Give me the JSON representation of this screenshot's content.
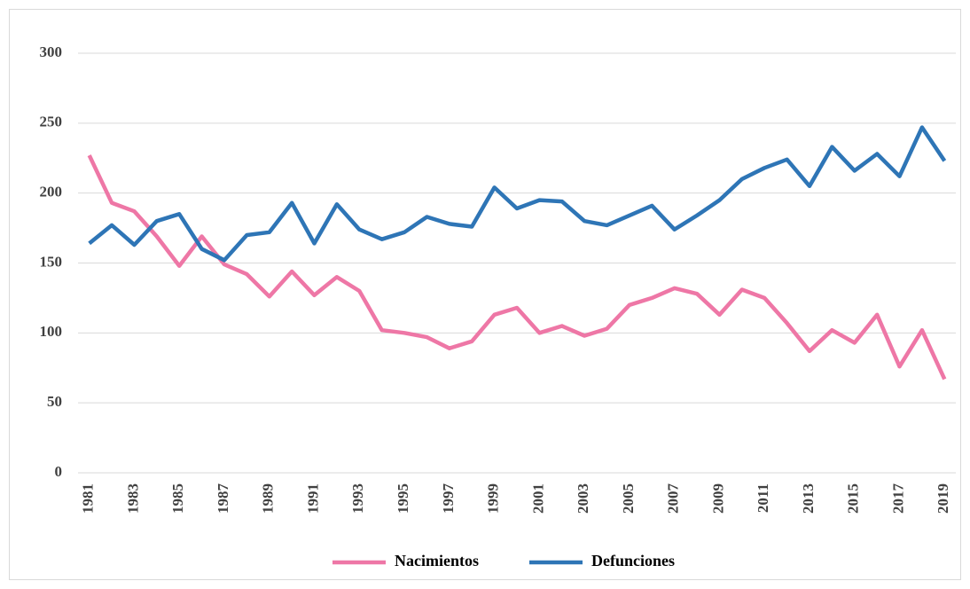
{
  "chart_data": {
    "type": "line",
    "categories": [
      "1981",
      null,
      "1983",
      null,
      "1985",
      null,
      "1987",
      null,
      "1989",
      null,
      "1991",
      null,
      "1993",
      null,
      "1995",
      null,
      "1997",
      null,
      "1999",
      null,
      "2001",
      null,
      "2003",
      null,
      "2005",
      null,
      "2007",
      null,
      "2009",
      null,
      "2011",
      null,
      "2013",
      null,
      "2015",
      null,
      "2017",
      null,
      "2019"
    ],
    "series": [
      {
        "name": "Nacimientos",
        "color": "#ee77a6",
        "values": [
          227,
          193,
          187,
          169,
          148,
          169,
          149,
          142,
          126,
          144,
          127,
          140,
          130,
          102,
          100,
          97,
          89,
          94,
          113,
          118,
          100,
          105,
          98,
          103,
          120,
          125,
          132,
          128,
          113,
          131,
          125,
          107,
          87,
          102,
          93,
          113,
          76,
          102,
          67
        ]
      },
      {
        "name": "Defunciones",
        "color": "#2e75b6",
        "values": [
          164,
          177,
          163,
          180,
          185,
          160,
          152,
          170,
          172,
          193,
          164,
          192,
          174,
          167,
          172,
          183,
          178,
          176,
          204,
          189,
          195,
          194,
          180,
          177,
          184,
          191,
          174,
          184,
          195,
          210,
          218,
          224,
          205,
          233,
          216,
          228,
          212,
          247,
          223
        ]
      }
    ],
    "ylim": [
      0,
      300
    ],
    "yticks": [
      0,
      50,
      100,
      150,
      200,
      250,
      300
    ],
    "grid": true,
    "legend": "bottom"
  }
}
